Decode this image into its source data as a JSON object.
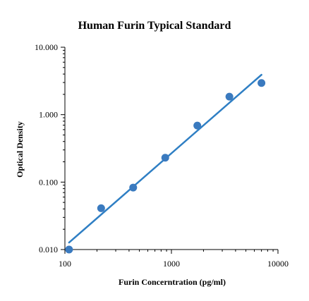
{
  "chart_data": {
    "type": "scatter",
    "title": "Human Furin Typical Standard",
    "xlabel": "Furin Concerntration (pg/ml)",
    "ylabel": "Optical Density",
    "x_scale": "log",
    "y_scale": "log",
    "xlim": [
      100,
      10000
    ],
    "ylim": [
      0.01,
      10
    ],
    "x_ticks": [
      100,
      1000,
      10000
    ],
    "x_tick_labels": [
      "100",
      "1000",
      "10000"
    ],
    "y_ticks": [
      0.01,
      0.1,
      1,
      10
    ],
    "y_tick_labels": [
      "0.010",
      "0.100",
      "1.000",
      "10.000"
    ],
    "grid": false,
    "points_color": "#3a7abf",
    "line_color": "#2f7fc4",
    "series": [
      {
        "x": [
          109.4,
          218.8,
          437.5,
          875,
          1750,
          3500,
          7000
        ],
        "y": [
          0.01,
          0.041,
          0.083,
          0.23,
          0.69,
          1.85,
          2.95
        ]
      }
    ],
    "trendline": {
      "x": [
        109.4,
        7000
      ],
      "y": [
        0.0127,
        3.9
      ]
    }
  }
}
